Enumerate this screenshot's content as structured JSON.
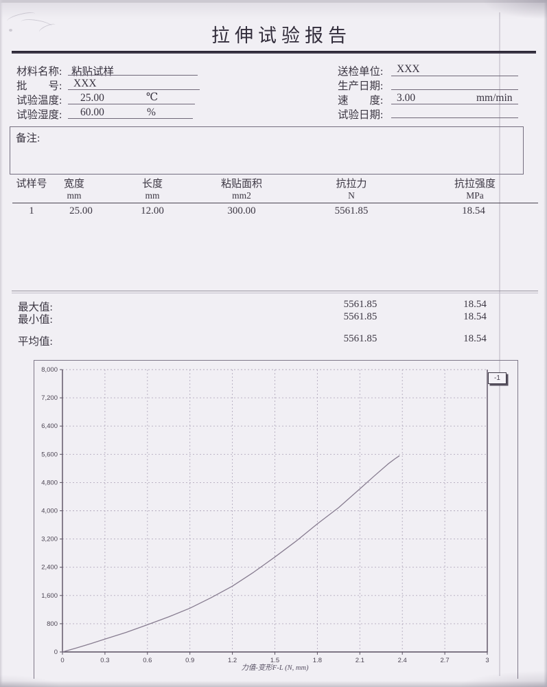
{
  "report": {
    "title": "拉伸试验报告",
    "fields_left": [
      {
        "label": "材料名称:",
        "value": "粘贴试样",
        "unit": ""
      },
      {
        "label": "批　　号:",
        "value": "XXX",
        "unit": ""
      },
      {
        "label": "试验温度:",
        "value": "25.00",
        "unit": "℃"
      },
      {
        "label": "试验湿度:",
        "value": "60.00",
        "unit": "%"
      }
    ],
    "fields_right": [
      {
        "label": "送检单位:",
        "value": "XXX",
        "unit": ""
      },
      {
        "label": "生产日期:",
        "value": "",
        "unit": ""
      },
      {
        "label": "速　　度:",
        "value": "3.00",
        "unit": "mm/min"
      },
      {
        "label": "试验日期:",
        "value": "",
        "unit": ""
      }
    ],
    "remarks_label": "备注:",
    "remarks_value": "",
    "table": {
      "columns": [
        {
          "name": "试样号",
          "unit": ""
        },
        {
          "name": "宽度",
          "unit": "mm"
        },
        {
          "name": "长度",
          "unit": "mm"
        },
        {
          "name": "粘贴面积",
          "unit": "mm2"
        },
        {
          "name": "抗拉力",
          "unit": "N"
        },
        {
          "name": "抗拉强度",
          "unit": "MPa"
        }
      ],
      "rows": [
        [
          "1",
          "25.00",
          "12.00",
          "300.00",
          "5561.85",
          "18.54"
        ]
      ]
    },
    "stats": [
      {
        "label": "最大值:",
        "force": "5561.85",
        "strength": "18.54"
      },
      {
        "label": "最小值:",
        "force": "5561.85",
        "strength": "18.54"
      },
      {
        "label": "平均值:",
        "force": "5561.85",
        "strength": "18.54"
      }
    ],
    "legend_button": "-1"
  },
  "chart_data": {
    "type": "line",
    "title": "",
    "xlabel": "力值-变形F-L   (N, mm)",
    "ylabel": "",
    "xlim": [
      0,
      3
    ],
    "ylim": [
      0,
      8000
    ],
    "xticks": [
      "0",
      "0.3",
      "0.6",
      "0.9",
      "1.2",
      "1.5",
      "1.8",
      "2.1",
      "2.4",
      "2.7",
      "3"
    ],
    "yticks": [
      "0",
      "800",
      "1,600",
      "2,400",
      "3,200",
      "4,000",
      "4,800",
      "5,600",
      "6,400",
      "7,200",
      "8,000"
    ],
    "grid": "dashed",
    "legend": "-1",
    "legend_position": "top-right",
    "series": [
      {
        "name": "1",
        "points": [
          [
            0,
            0
          ],
          [
            0.1,
            115
          ],
          [
            0.2,
            235
          ],
          [
            0.3,
            365
          ],
          [
            0.45,
            555
          ],
          [
            0.6,
            770
          ],
          [
            0.75,
            995
          ],
          [
            0.9,
            1240
          ],
          [
            1.05,
            1540
          ],
          [
            1.2,
            1865
          ],
          [
            1.35,
            2260
          ],
          [
            1.5,
            2690
          ],
          [
            1.65,
            3140
          ],
          [
            1.8,
            3630
          ],
          [
            1.95,
            4090
          ],
          [
            2.1,
            4620
          ],
          [
            2.2,
            4980
          ],
          [
            2.3,
            5330
          ],
          [
            2.35,
            5480
          ],
          [
            2.38,
            5561.85
          ]
        ]
      }
    ]
  },
  "colors": {
    "paper": "#f1eff4",
    "ink": "#3b3642",
    "curve": "#877c90",
    "grid": "#b2aabd",
    "axis": "#584f5f"
  }
}
